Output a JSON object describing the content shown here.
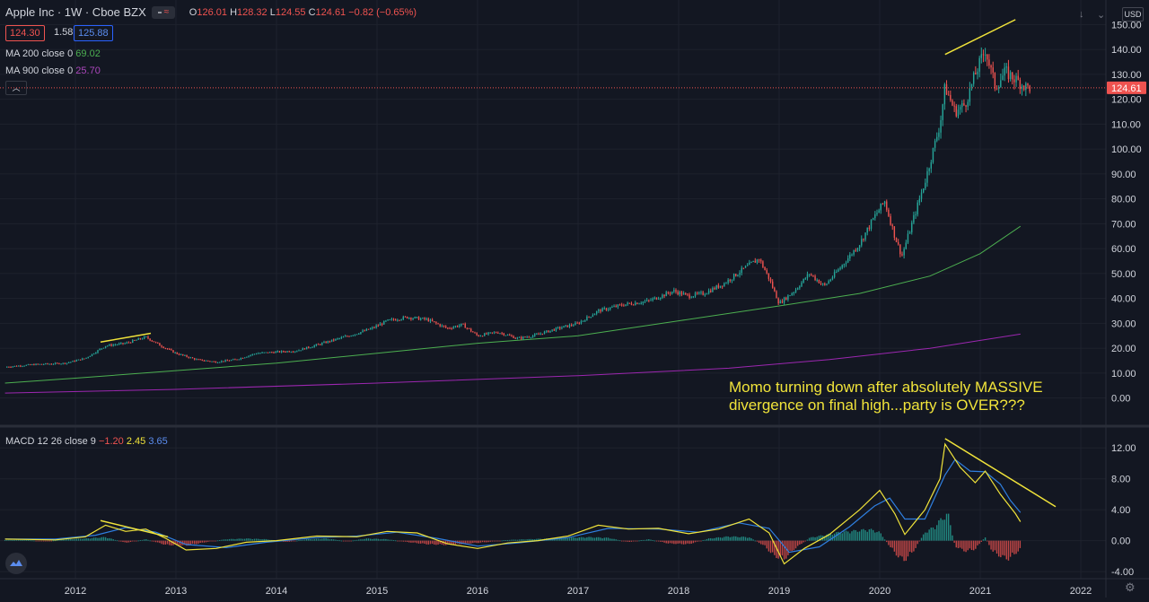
{
  "header": {
    "symbol": "Apple Inc · 1W · Cboe BZX",
    "o_label": "O",
    "o": "126.01",
    "h_label": "H",
    "h": "128.32",
    "l_label": "L",
    "l": "124.55",
    "c_label": "C",
    "c": "124.61",
    "change": "−0.82 (−0.65%)"
  },
  "quote": {
    "bid": "124.30",
    "spread": "1.58",
    "ask": "125.88"
  },
  "indicators": {
    "ma200_label": "MA 200 close 0",
    "ma200_value": "69.02",
    "ma900_label": "MA 900 close 0",
    "ma900_value": "25.70",
    "macd_label": "MACD 12 26 close 9",
    "macd_hist": "−1.20",
    "macd_line": "2.45",
    "macd_signal": "3.65"
  },
  "currency_button": "USD",
  "last_price_tag": "124.61",
  "annotation": [
    "Momo turning down after absolutely MASSIVE",
    "divergence on final high...party is OVER???"
  ],
  "colors": {
    "background": "#131722",
    "up": "#26a69a",
    "down": "#ef5350",
    "ma200": "#4caf50",
    "ma900": "#9c27b0",
    "macd_line": "#f0e33a",
    "macd_signal": "#2f7fe0",
    "trendline": "#f0e33a",
    "axis_text": "#d1d4dc"
  },
  "chart_data": [
    {
      "type": "candlestick",
      "title": "Apple Inc · 1W · Cboe BZX",
      "x_ticks": [
        "2012",
        "2013",
        "2014",
        "2015",
        "2016",
        "2017",
        "2018",
        "2019",
        "2020",
        "2021",
        "2022"
      ],
      "y_ticks": [
        "150.00",
        "140.00",
        "130.00",
        "120.00",
        "110.00",
        "100.00",
        "90.00",
        "80.00",
        "70.00",
        "60.00",
        "50.00",
        "40.00",
        "30.00",
        "20.00",
        "10.00",
        "0.00"
      ],
      "ylim": [
        -3,
        157
      ],
      "price_path": [
        [
          2011.3,
          12.5
        ],
        [
          2011.6,
          13.5
        ],
        [
          2011.9,
          14
        ],
        [
          2012.1,
          16
        ],
        [
          2012.3,
          21
        ],
        [
          2012.5,
          22
        ],
        [
          2012.7,
          24.5
        ],
        [
          2012.85,
          21
        ],
        [
          2013.0,
          18
        ],
        [
          2013.2,
          15.5
        ],
        [
          2013.4,
          14.5
        ],
        [
          2013.6,
          15.5
        ],
        [
          2013.8,
          18
        ],
        [
          2014.0,
          18.5
        ],
        [
          2014.2,
          19
        ],
        [
          2014.5,
          22.5
        ],
        [
          2014.8,
          26
        ],
        [
          2014.95,
          28
        ],
        [
          2015.1,
          31
        ],
        [
          2015.3,
          32.5
        ],
        [
          2015.5,
          31.5
        ],
        [
          2015.7,
          28
        ],
        [
          2015.85,
          29.5
        ],
        [
          2016.0,
          25
        ],
        [
          2016.2,
          26.5
        ],
        [
          2016.4,
          24
        ],
        [
          2016.55,
          25
        ],
        [
          2016.8,
          28
        ],
        [
          2017.0,
          30
        ],
        [
          2017.2,
          35
        ],
        [
          2017.45,
          37.5
        ],
        [
          2017.7,
          39
        ],
        [
          2017.95,
          43
        ],
        [
          2018.1,
          41
        ],
        [
          2018.25,
          42
        ],
        [
          2018.45,
          46
        ],
        [
          2018.65,
          52
        ],
        [
          2018.8,
          56
        ],
        [
          2018.9,
          48
        ],
        [
          2019.0,
          38
        ],
        [
          2019.15,
          43
        ],
        [
          2019.3,
          50
        ],
        [
          2019.45,
          45
        ],
        [
          2019.6,
          52
        ],
        [
          2019.8,
          62
        ],
        [
          2019.95,
          73
        ],
        [
          2020.05,
          79
        ],
        [
          2020.15,
          65
        ],
        [
          2020.22,
          57
        ],
        [
          2020.32,
          70
        ],
        [
          2020.45,
          87
        ],
        [
          2020.6,
          110
        ],
        [
          2020.65,
          125
        ],
        [
          2020.75,
          115
        ],
        [
          2020.85,
          118
        ],
        [
          2020.95,
          130
        ],
        [
          2021.05,
          140
        ],
        [
          2021.15,
          125
        ],
        [
          2021.25,
          131
        ],
        [
          2021.35,
          128
        ],
        [
          2021.45,
          125
        ],
        [
          2021.5,
          124.6
        ]
      ],
      "last_price": 124.61,
      "ma200": [
        [
          2011.3,
          6
        ],
        [
          2012.0,
          8
        ],
        [
          2013.0,
          11
        ],
        [
          2014.0,
          14
        ],
        [
          2015.0,
          18
        ],
        [
          2016.0,
          22
        ],
        [
          2017.0,
          25
        ],
        [
          2018.0,
          31
        ],
        [
          2019.0,
          37
        ],
        [
          2019.8,
          42
        ],
        [
          2020.5,
          49
        ],
        [
          2021.0,
          58
        ],
        [
          2021.4,
          69
        ]
      ],
      "ma900": [
        [
          2011.3,
          2
        ],
        [
          2013.0,
          3.5
        ],
        [
          2015.0,
          6
        ],
        [
          2017.0,
          9
        ],
        [
          2018.5,
          12
        ],
        [
          2019.5,
          15.5
        ],
        [
          2020.5,
          20
        ],
        [
          2021.4,
          25.7
        ]
      ],
      "trendlines": [
        {
          "x": [
            2012.25,
            2012.75
          ],
          "y": [
            22.5,
            26
          ]
        },
        {
          "x": [
            2020.65,
            2021.35
          ],
          "y": [
            138,
            152
          ]
        }
      ]
    },
    {
      "type": "line",
      "title": "MACD 12 26 close 9",
      "y_ticks": [
        "12.00",
        "8.00",
        "4.00",
        "0.00",
        "-4.00"
      ],
      "ylim": [
        -4.8,
        14
      ],
      "series": [
        {
          "values": [
            [
              2011.3,
              0.2
            ],
            [
              2011.8,
              0.1
            ],
            [
              2012.1,
              0.5
            ],
            [
              2012.3,
              2
            ],
            [
              2012.5,
              1.2
            ],
            [
              2012.7,
              1.5
            ],
            [
              2012.9,
              0.3
            ],
            [
              2013.1,
              -1.2
            ],
            [
              2013.4,
              -1
            ],
            [
              2013.7,
              -0.2
            ],
            [
              2014.0,
              0
            ],
            [
              2014.4,
              0.6
            ],
            [
              2014.8,
              0.5
            ],
            [
              2015.1,
              1.2
            ],
            [
              2015.4,
              1
            ],
            [
              2015.7,
              -0.4
            ],
            [
              2016.0,
              -1
            ],
            [
              2016.3,
              -0.3
            ],
            [
              2016.6,
              0
            ],
            [
              2016.9,
              0.6
            ],
            [
              2017.2,
              2
            ],
            [
              2017.5,
              1.5
            ],
            [
              2017.8,
              1.6
            ],
            [
              2018.1,
              0.9
            ],
            [
              2018.4,
              1.5
            ],
            [
              2018.7,
              2.8
            ],
            [
              2018.9,
              1
            ],
            [
              2019.05,
              -3
            ],
            [
              2019.25,
              -1
            ],
            [
              2019.5,
              0.8
            ],
            [
              2019.8,
              4
            ],
            [
              2020.0,
              6.5
            ],
            [
              2020.15,
              3.5
            ],
            [
              2020.25,
              0.8
            ],
            [
              2020.45,
              4
            ],
            [
              2020.6,
              8
            ],
            [
              2020.65,
              12.5
            ],
            [
              2020.8,
              9.5
            ],
            [
              2020.95,
              7.5
            ],
            [
              2021.05,
              9
            ],
            [
              2021.2,
              6
            ],
            [
              2021.35,
              3.5
            ],
            [
              2021.4,
              2.45
            ]
          ]
        },
        {
          "values": [
            [
              2011.3,
              0.2
            ],
            [
              2011.8,
              0.2
            ],
            [
              2012.2,
              0.7
            ],
            [
              2012.5,
              1.7
            ],
            [
              2012.8,
              1.1
            ],
            [
              2013.1,
              -0.5
            ],
            [
              2013.5,
              -0.9
            ],
            [
              2013.9,
              -0.2
            ],
            [
              2014.4,
              0.4
            ],
            [
              2014.8,
              0.6
            ],
            [
              2015.2,
              1.1
            ],
            [
              2015.6,
              0.3
            ],
            [
              2016.0,
              -0.7
            ],
            [
              2016.4,
              -0.3
            ],
            [
              2016.9,
              0.4
            ],
            [
              2017.3,
              1.6
            ],
            [
              2017.8,
              1.5
            ],
            [
              2018.2,
              1.1
            ],
            [
              2018.6,
              2.3
            ],
            [
              2018.9,
              1.6
            ],
            [
              2019.1,
              -1.5
            ],
            [
              2019.4,
              -0.8
            ],
            [
              2019.7,
              1.8
            ],
            [
              2019.95,
              4.5
            ],
            [
              2020.1,
              5.5
            ],
            [
              2020.25,
              2.8
            ],
            [
              2020.45,
              2.8
            ],
            [
              2020.65,
              8.5
            ],
            [
              2020.75,
              10.5
            ],
            [
              2020.9,
              9
            ],
            [
              2021.05,
              8.9
            ],
            [
              2021.2,
              7.3
            ],
            [
              2021.3,
              5.2
            ],
            [
              2021.4,
              3.65
            ]
          ]
        }
      ],
      "histogram": [
        [
          2011.3,
          0.1
        ],
        [
          2011.5,
          0.1
        ],
        [
          2011.7,
          -0.1
        ],
        [
          2011.9,
          0.2
        ],
        [
          2012.1,
          0.3
        ],
        [
          2012.3,
          0.5
        ],
        [
          2012.5,
          -0.3
        ],
        [
          2012.7,
          0.2
        ],
        [
          2012.9,
          -0.6
        ],
        [
          2013.1,
          -0.7
        ],
        [
          2013.3,
          -0.2
        ],
        [
          2013.5,
          0.2
        ],
        [
          2013.7,
          0.3
        ],
        [
          2013.9,
          0.2
        ],
        [
          2014.1,
          -0.2
        ],
        [
          2014.3,
          0.2
        ],
        [
          2014.5,
          0.3
        ],
        [
          2014.7,
          -0.1
        ],
        [
          2014.9,
          0.3
        ],
        [
          2015.1,
          0.2
        ],
        [
          2015.3,
          -0.2
        ],
        [
          2015.5,
          -0.5
        ],
        [
          2015.7,
          -0.6
        ],
        [
          2015.9,
          -0.4
        ],
        [
          2016.1,
          -0.2
        ],
        [
          2016.3,
          0.1
        ],
        [
          2016.5,
          0.2
        ],
        [
          2016.7,
          0.3
        ],
        [
          2016.9,
          0.4
        ],
        [
          2017.1,
          0.5
        ],
        [
          2017.3,
          0.4
        ],
        [
          2017.5,
          -0.2
        ],
        [
          2017.7,
          0.2
        ],
        [
          2017.9,
          -0.4
        ],
        [
          2018.1,
          -0.5
        ],
        [
          2018.3,
          0.3
        ],
        [
          2018.5,
          0.6
        ],
        [
          2018.7,
          0.5
        ],
        [
          2018.85,
          -0.7
        ],
        [
          2018.95,
          -2.2
        ],
        [
          2019.05,
          -2.6
        ],
        [
          2019.15,
          -1.2
        ],
        [
          2019.3,
          0.4
        ],
        [
          2019.45,
          0.8
        ],
        [
          2019.6,
          1.2
        ],
        [
          2019.75,
          1.4
        ],
        [
          2019.9,
          1.6
        ],
        [
          2020.0,
          1.2
        ],
        [
          2020.1,
          -0.8
        ],
        [
          2020.18,
          -2.2
        ],
        [
          2020.25,
          -2.8
        ],
        [
          2020.35,
          -1.2
        ],
        [
          2020.45,
          1.2
        ],
        [
          2020.55,
          2
        ],
        [
          2020.62,
          3.2
        ],
        [
          2020.68,
          3.8
        ],
        [
          2020.75,
          -0.8
        ],
        [
          2020.85,
          -1.5
        ],
        [
          2020.95,
          -1.2
        ],
        [
          2021.05,
          0.5
        ],
        [
          2021.12,
          -1.5
        ],
        [
          2021.2,
          -2.2
        ],
        [
          2021.28,
          -2.6
        ],
        [
          2021.35,
          -1.8
        ],
        [
          2021.4,
          -1.2
        ]
      ],
      "trendlines": [
        {
          "x": [
            2012.25,
            2012.92
          ],
          "y": [
            2.6,
            0.5
          ]
        },
        {
          "x": [
            2020.65,
            2021.75
          ],
          "y": [
            13.2,
            4.4
          ]
        }
      ]
    }
  ],
  "x_axis": {
    "start": 2011.25,
    "end": 2022.25
  }
}
